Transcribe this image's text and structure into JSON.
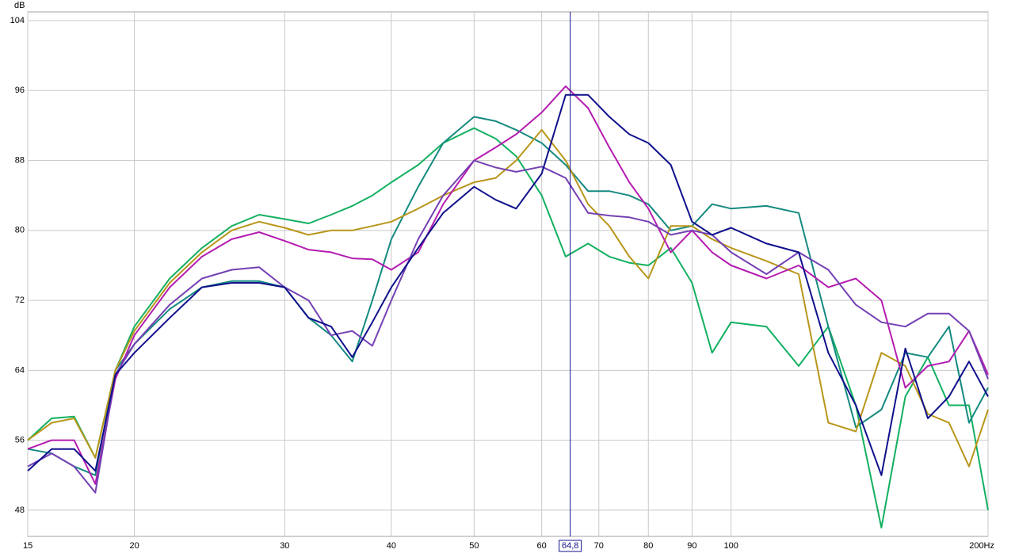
{
  "chart_data": {
    "type": "line",
    "y_label": "dB",
    "x_scale": "log",
    "grid": true,
    "x": [
      15,
      16,
      17,
      18,
      19,
      20,
      22,
      24,
      26,
      28,
      30,
      32,
      34,
      36,
      38,
      40,
      43,
      46,
      50,
      53,
      56,
      60,
      64,
      68,
      72,
      76,
      80,
      85,
      90,
      95,
      100,
      110,
      120,
      130,
      140,
      150,
      160,
      170,
      180,
      190,
      200
    ],
    "series": [
      {
        "color": "#13b060",
        "values": [
          56,
          58.5,
          58.7,
          54,
          64,
          69,
          74.5,
          78,
          80.5,
          81.8,
          81.3,
          80.8,
          81.8,
          82.8,
          84,
          85.5,
          87.5,
          90,
          91.7,
          90.5,
          88.5,
          84,
          77,
          78.5,
          77,
          76.3,
          76,
          78,
          74,
          66,
          69.5,
          69,
          64.5,
          69,
          60,
          46,
          61,
          65.5,
          60,
          60,
          48
        ]
      },
      {
        "color": "#158a80",
        "values": [
          55,
          54.5,
          53,
          52,
          64,
          67,
          71,
          73.5,
          74.2,
          74.2,
          73.5,
          70,
          68,
          65,
          72,
          79,
          85,
          90,
          93,
          92.5,
          91.5,
          90,
          87.5,
          84.5,
          84.5,
          84,
          83,
          80,
          80.5,
          83,
          82.5,
          82.8,
          82,
          69,
          57.5,
          59.5,
          66,
          65.5,
          69,
          58,
          62
        ]
      },
      {
        "color": "#b8961a",
        "values": [
          56,
          58,
          58.5,
          54,
          64,
          68.5,
          74,
          77.5,
          80,
          81,
          80.3,
          79.5,
          80,
          80,
          80.5,
          81,
          82.5,
          84,
          85.5,
          86,
          88,
          91.5,
          88,
          83,
          80.5,
          77,
          74.5,
          80.5,
          80.5,
          79,
          78,
          76.5,
          75,
          58,
          57,
          66,
          64.5,
          59,
          58,
          53,
          59.5
        ]
      },
      {
        "color": "#b41cb0",
        "values": [
          55,
          56,
          56,
          51,
          63,
          68,
          73.5,
          77,
          79,
          79.8,
          78.8,
          77.8,
          77.5,
          76.8,
          76.7,
          75.5,
          77.5,
          83,
          88,
          89.5,
          91,
          93.5,
          96.5,
          94,
          89.5,
          85.5,
          82.5,
          77.5,
          80,
          77.5,
          76,
          74.5,
          76,
          73.5,
          74.5,
          72,
          62,
          64.5,
          65,
          68.5,
          63.5
        ]
      },
      {
        "color": "#7440b4",
        "values": [
          53,
          54.5,
          53,
          50,
          63.5,
          67,
          71.5,
          74.5,
          75.5,
          75.8,
          73.5,
          72,
          68,
          68.5,
          66.8,
          72,
          79,
          84,
          88,
          87.2,
          86.7,
          87.3,
          86,
          82,
          81.7,
          81.5,
          81,
          79.5,
          80,
          79.5,
          77.5,
          75,
          77.5,
          75.5,
          71.5,
          69.5,
          69,
          70.5,
          70.5,
          68.5,
          63
        ]
      },
      {
        "color": "#10108c",
        "values": [
          52.5,
          55,
          55,
          52.5,
          63.5,
          66,
          70,
          73.5,
          74,
          74,
          73.5,
          70,
          69,
          65.5,
          69.5,
          73.5,
          78,
          82,
          85,
          83.5,
          82.5,
          86.5,
          95.5,
          95.5,
          93,
          91,
          90,
          87.5,
          81,
          79.5,
          80.3,
          78.5,
          77.5,
          66,
          60,
          52,
          66.5,
          58.5,
          61,
          65,
          61
        ]
      }
    ],
    "xlim": [
      15,
      200
    ],
    "ylim": [
      45,
      105
    ],
    "xticks": [
      15,
      20,
      30,
      40,
      50,
      60,
      70,
      80,
      90,
      100,
      {
        "value": 200,
        "label": "200Hz"
      }
    ],
    "yticks": [
      48,
      56,
      64,
      72,
      80,
      88,
      96,
      104
    ],
    "cursor": {
      "value": 64.8,
      "label": "64,8"
    }
  }
}
